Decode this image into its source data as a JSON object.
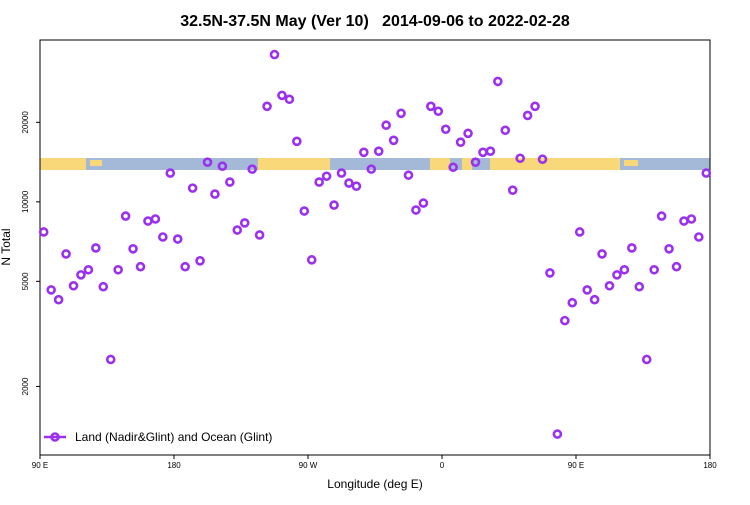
{
  "chart_data": {
    "type": "scatter",
    "title": "32.5N-37.5N May (Ver 10)   2014-09-06 to 2022-02-28",
    "xlabel": "Longitude (deg E)",
    "ylabel": "N Total",
    "ylog": true,
    "xlim": [
      90,
      540
    ],
    "xticks": [
      {
        "value": 90,
        "label": "90 E"
      },
      180,
      {
        "value": 270,
        "label": "90 W"
      },
      {
        "value": 360,
        "label": "0"
      },
      {
        "value": 450,
        "label": "90 E"
      },
      {
        "value": 540,
        "label": "180"
      }
    ],
    "ylim": [
      1100,
      41000
    ],
    "yticks": [
      2000,
      5000,
      10000,
      20000
    ],
    "legend": "bottom-left",
    "series": [
      {
        "name": "Land (Nadir&Glint) and Ocean (Glint)",
        "color": "#9b30f0",
        "x": [
          92.5,
          97.5,
          102.5,
          107.5,
          112.5,
          117.5,
          122.5,
          127.5,
          132.5,
          137.5,
          142.5,
          147.5,
          152.5,
          157.5,
          162.5,
          167.5,
          172.5,
          177.5,
          182.5,
          187.5,
          192.5,
          197.5,
          202.5,
          207.5,
          212.5,
          217.5,
          222.5,
          227.5,
          232.5,
          237.5,
          242.5,
          247.5,
          252.5,
          257.5,
          262.5,
          267.5,
          272.5,
          277.5,
          282.5,
          287.5,
          292.5,
          297.5,
          302.5,
          307.5,
          312.5,
          317.5,
          322.5,
          327.5,
          332.5,
          337.5,
          342.5,
          347.5,
          352.5,
          357.5,
          362.5,
          367.5,
          372.5,
          377.5,
          382.5,
          387.5,
          392.5,
          397.5,
          402.5,
          407.5,
          412.5,
          417.5,
          422.5,
          427.5,
          432.5,
          437.5,
          442.5,
          447.5,
          452.5,
          457.5,
          462.5,
          467.5,
          472.5,
          477.5,
          482.5,
          487.5,
          492.5,
          497.5,
          502.5,
          507.5,
          512.5,
          517.5,
          522.5,
          527.5,
          532.5,
          537.5
        ],
        "values": [
          7690,
          4640,
          4260,
          6350,
          4810,
          5290,
          5530,
          6690,
          4770,
          2530,
          5530,
          8830,
          6640,
          5680,
          8460,
          8610,
          7360,
          12850,
          7230,
          5680,
          11270,
          5980,
          14130,
          10700,
          13640,
          11880,
          7820,
          8320,
          13300,
          7490,
          23000,
          36100,
          25300,
          24450,
          16950,
          9230,
          6030,
          11880,
          12500,
          9720,
          12850,
          11780,
          11460,
          15400,
          13300,
          15550,
          19500,
          17100,
          21630,
          12620,
          9310,
          9890,
          23000,
          22030,
          18830,
          13520,
          16820,
          18170,
          14130,
          15400,
          15550,
          28580,
          18660,
          11070,
          14620,
          21240,
          23000,
          14500,
          5380,
          1320,
          3550,
          4150,
          7690,
          4640,
          4260,
          6350,
          4810,
          5290,
          5530,
          6690,
          4770,
          2530,
          5530,
          8830,
          6640,
          5680,
          8460,
          8610,
          7360,
          12850
        ]
      }
    ]
  }
}
